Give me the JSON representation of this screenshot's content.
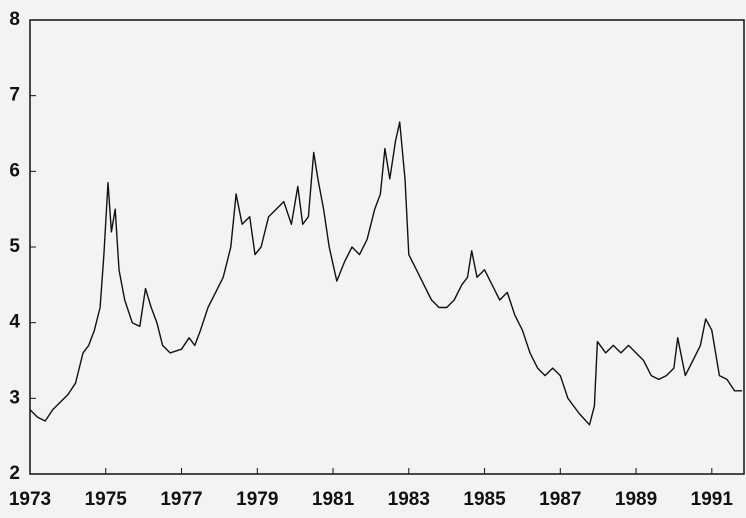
{
  "chart_data": {
    "type": "line",
    "x": [
      1973.0,
      1973.2,
      1973.4,
      1973.6,
      1973.8,
      1974.0,
      1974.2,
      1974.4,
      1974.55,
      1974.7,
      1974.85,
      1974.95,
      1975.06,
      1975.15,
      1975.25,
      1975.35,
      1975.5,
      1975.7,
      1975.9,
      1976.05,
      1976.2,
      1976.35,
      1976.5,
      1976.7,
      1977.0,
      1977.2,
      1977.35,
      1977.5,
      1977.7,
      1977.9,
      1978.1,
      1978.3,
      1978.44,
      1978.6,
      1978.8,
      1978.94,
      1979.1,
      1979.3,
      1979.5,
      1979.7,
      1979.9,
      1980.07,
      1980.2,
      1980.35,
      1980.49,
      1980.6,
      1980.75,
      1980.9,
      1981.1,
      1981.3,
      1981.5,
      1981.7,
      1981.9,
      1982.1,
      1982.25,
      1982.37,
      1982.5,
      1982.65,
      1982.76,
      1982.9,
      1983.0,
      1983.2,
      1983.4,
      1983.6,
      1983.8,
      1984.0,
      1984.2,
      1984.4,
      1984.55,
      1984.66,
      1984.8,
      1985.0,
      1985.2,
      1985.4,
      1985.6,
      1985.8,
      1986.0,
      1986.2,
      1986.4,
      1986.6,
      1986.8,
      1987.0,
      1987.2,
      1987.5,
      1987.77,
      1987.9,
      1987.98,
      1988.2,
      1988.4,
      1988.6,
      1988.8,
      1989.0,
      1989.2,
      1989.4,
      1989.6,
      1989.8,
      1990.0,
      1990.1,
      1990.3,
      1990.5,
      1990.7,
      1990.84,
      1991.0,
      1991.2,
      1991.4,
      1991.6,
      1991.8
    ],
    "values": [
      2.85,
      2.75,
      2.7,
      2.85,
      2.95,
      3.05,
      3.2,
      3.6,
      3.7,
      3.9,
      4.2,
      4.9,
      5.85,
      5.2,
      5.5,
      4.7,
      4.3,
      4.0,
      3.95,
      4.45,
      4.2,
      4.0,
      3.7,
      3.6,
      3.65,
      3.8,
      3.7,
      3.9,
      4.2,
      4.4,
      4.6,
      5.0,
      5.7,
      5.3,
      5.4,
      4.9,
      5.0,
      5.4,
      5.5,
      5.6,
      5.3,
      5.8,
      5.3,
      5.4,
      6.25,
      5.9,
      5.5,
      5.0,
      4.55,
      4.8,
      5.0,
      4.9,
      5.1,
      5.5,
      5.7,
      6.3,
      5.9,
      6.4,
      6.65,
      5.9,
      4.9,
      4.7,
      4.5,
      4.3,
      4.2,
      4.2,
      4.3,
      4.5,
      4.6,
      4.95,
      4.6,
      4.7,
      4.5,
      4.3,
      4.4,
      4.1,
      3.9,
      3.6,
      3.4,
      3.3,
      3.4,
      3.3,
      3.0,
      2.8,
      2.65,
      2.9,
      3.75,
      3.6,
      3.7,
      3.6,
      3.7,
      3.6,
      3.5,
      3.3,
      3.25,
      3.3,
      3.4,
      3.8,
      3.3,
      3.5,
      3.7,
      4.05,
      3.9,
      3.3,
      3.25,
      3.1,
      3.1
    ],
    "color": "#111111",
    "xlim": [
      1973,
      1991.85
    ],
    "xticks": [
      1973,
      1975,
      1977,
      1979,
      1981,
      1983,
      1985,
      1987,
      1989,
      1991
    ],
    "ylim": [
      2,
      8
    ],
    "yticks": [
      2,
      3,
      4,
      5,
      6,
      7,
      8
    ]
  }
}
